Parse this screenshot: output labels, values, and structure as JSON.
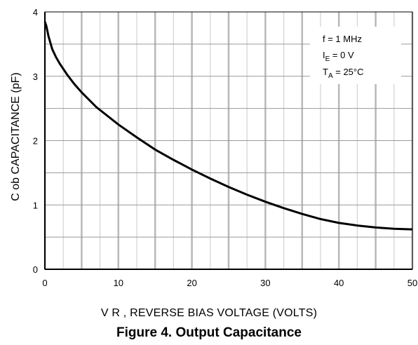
{
  "chart_data": {
    "type": "line",
    "caption": "Figure 4. Output Capacitance",
    "xlabel": "V R , REVERSE BIAS VOLTAGE (VOLTS)",
    "ylabel": "C ob CAPACITANCE (pF)",
    "xlim": [
      0,
      50
    ],
    "ylim": [
      0,
      4
    ],
    "xticks": [
      "0",
      "10",
      "20",
      "30",
      "40",
      "50"
    ],
    "yticks": [
      "0",
      "1",
      "2",
      "3",
      "4"
    ],
    "grid": true,
    "conditions": {
      "freq": "f = 1 MHz",
      "ie_main": "I",
      "ie_sub": "E",
      "ie_rest": " = 0 V",
      "ta_main": "T",
      "ta_sub": "A",
      "ta_rest": " = 25°C"
    },
    "series": [
      {
        "x": [
          0,
          0.2,
          0.5,
          1,
          1.5,
          2,
          3,
          4,
          5,
          7,
          10,
          12.5,
          15,
          17.5,
          20,
          22.5,
          25,
          27.5,
          30,
          32.5,
          35,
          37.5,
          40,
          42.5,
          45,
          47.5,
          50
        ],
        "y": [
          3.85,
          3.78,
          3.62,
          3.42,
          3.3,
          3.2,
          3.03,
          2.88,
          2.75,
          2.52,
          2.25,
          2.05,
          1.86,
          1.7,
          1.55,
          1.41,
          1.28,
          1.16,
          1.05,
          0.95,
          0.86,
          0.78,
          0.72,
          0.68,
          0.65,
          0.63,
          0.62
        ]
      }
    ]
  }
}
